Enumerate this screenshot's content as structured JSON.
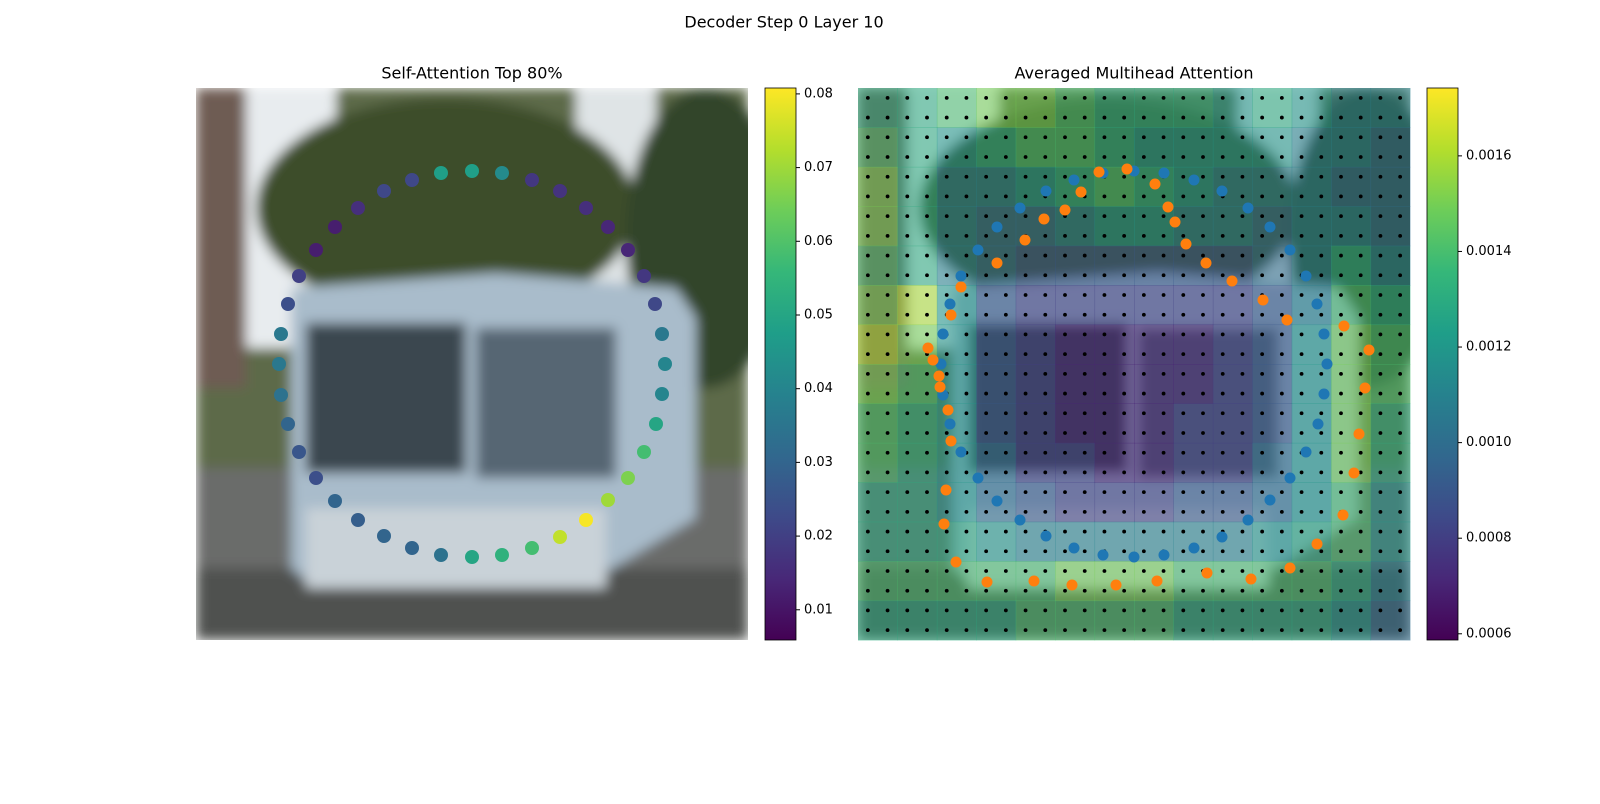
{
  "title": "Decoder Step 0 Layer 10",
  "chart_data": [
    {
      "type": "scatter",
      "title": "Self-Attention Top 80%",
      "xlim": [
        0,
        552
      ],
      "ylim": [
        552,
        0
      ],
      "x": [
        216,
        245,
        276,
        306,
        336,
        364,
        390,
        412,
        432,
        448,
        459,
        466,
        469,
        466,
        460,
        448,
        432,
        412,
        390,
        364,
        336,
        306,
        276,
        245,
        216,
        188,
        162,
        139,
        120,
        103,
        92,
        85,
        83,
        85,
        92,
        103,
        120,
        139,
        162,
        188
      ],
      "y": [
        92,
        85,
        83,
        85,
        92,
        103,
        120,
        139,
        162,
        188,
        216,
        246,
        276,
        306,
        336,
        364,
        390,
        412,
        432,
        449,
        460,
        467,
        469,
        467,
        460,
        448,
        432,
        413,
        390,
        364,
        336,
        307,
        276,
        246,
        216,
        188,
        162,
        139,
        120,
        103
      ],
      "values": [
        0.022,
        0.048,
        0.048,
        0.042,
        0.018,
        0.017,
        0.016,
        0.014,
        0.014,
        0.018,
        0.022,
        0.036,
        0.04,
        0.04,
        0.05,
        0.058,
        0.066,
        0.07,
        0.08,
        0.074,
        0.058,
        0.054,
        0.05,
        0.034,
        0.03,
        0.03,
        0.028,
        0.03,
        0.024,
        0.026,
        0.03,
        0.034,
        0.036,
        0.036,
        0.024,
        0.02,
        0.012,
        0.012,
        0.016,
        0.022
      ],
      "colormap": "viridis",
      "clim": [
        0.0059,
        0.0808
      ],
      "cticks": [
        0.01,
        0.02,
        0.03,
        0.04,
        0.05,
        0.06,
        0.07,
        0.08
      ]
    },
    {
      "type": "heatmap",
      "title": "Averaged Multihead Attention",
      "xlim": [
        0,
        552
      ],
      "ylim": [
        552,
        0
      ],
      "colormap": "viridis",
      "z": [
        [
          0.0013,
          0.0013,
          0.0014,
          0.0015,
          0.0015,
          0.0014,
          0.0013,
          0.0013,
          0.0013,
          0.0012,
          0.0013,
          0.0012,
          0.0011,
          0.0011
        ],
        [
          0.0014,
          0.0013,
          0.0012,
          0.0013,
          0.0014,
          0.0014,
          0.0013,
          0.0012,
          0.0012,
          0.0012,
          0.0012,
          0.0011,
          0.0011,
          0.001
        ],
        [
          0.0015,
          0.0013,
          0.0011,
          0.0011,
          0.0012,
          0.0013,
          0.0014,
          0.0013,
          0.0012,
          0.0011,
          0.0011,
          0.0011,
          0.001,
          0.001
        ],
        [
          0.0015,
          0.0013,
          0.0011,
          0.001,
          0.001,
          0.0011,
          0.0012,
          0.0012,
          0.0011,
          0.0011,
          0.001,
          0.0011,
          0.0011,
          0.001
        ],
        [
          0.0014,
          0.0013,
          0.0011,
          0.001,
          0.0009,
          0.0009,
          0.0009,
          0.0009,
          0.0009,
          0.0009,
          0.001,
          0.0011,
          0.0013,
          0.0011
        ],
        [
          0.0015,
          0.0016,
          0.0012,
          0.0009,
          0.0008,
          0.0008,
          0.0008,
          0.0008,
          0.0008,
          0.0008,
          0.0009,
          0.0011,
          0.0014,
          0.0013
        ],
        [
          0.0016,
          0.0015,
          0.0012,
          0.0009,
          0.0008,
          0.0007,
          0.0007,
          0.0007,
          0.0007,
          0.0008,
          0.0009,
          0.0012,
          0.0015,
          0.0014
        ],
        [
          0.0015,
          0.0014,
          0.0012,
          0.0009,
          0.0008,
          0.0007,
          0.0007,
          0.0007,
          0.0007,
          0.0008,
          0.0009,
          0.0012,
          0.0015,
          0.0014
        ],
        [
          0.0014,
          0.0013,
          0.0012,
          0.0009,
          0.0008,
          0.0007,
          0.0007,
          0.0007,
          0.0008,
          0.0008,
          0.0009,
          0.0012,
          0.0015,
          0.0013
        ],
        [
          0.0014,
          0.0013,
          0.0012,
          0.001,
          0.0008,
          0.0008,
          0.0007,
          0.0007,
          0.0008,
          0.0008,
          0.001,
          0.0012,
          0.0015,
          0.0013
        ],
        [
          0.0013,
          0.0013,
          0.0012,
          0.001,
          0.0009,
          0.0008,
          0.0008,
          0.0008,
          0.0009,
          0.0009,
          0.001,
          0.0012,
          0.0014,
          0.0012
        ],
        [
          0.0013,
          0.0013,
          0.0013,
          0.0012,
          0.0011,
          0.0011,
          0.0011,
          0.0011,
          0.0011,
          0.0011,
          0.0012,
          0.0013,
          0.0014,
          0.0012
        ],
        [
          0.0014,
          0.0014,
          0.0014,
          0.0014,
          0.0014,
          0.0015,
          0.0015,
          0.0015,
          0.0014,
          0.0014,
          0.0014,
          0.0014,
          0.0013,
          0.0011
        ],
        [
          0.0013,
          0.0013,
          0.0013,
          0.0013,
          0.0014,
          0.0014,
          0.0014,
          0.0014,
          0.0013,
          0.0013,
          0.0013,
          0.0013,
          0.0012,
          0.001
        ]
      ],
      "clim": [
        0.000587,
        0.001742
      ],
      "cticks": [
        0.0006,
        0.0008,
        {
          "value": 0.001,
          "label": "0.0010"
        },
        0.0012,
        0.0014,
        0.0016
      ],
      "series": [
        {
          "color": "#1f77b4",
          "x": [
            216,
            245,
            276,
            306,
            336,
            364,
            390,
            412,
            432,
            448,
            459,
            466,
            469,
            466,
            460,
            448,
            432,
            412,
            390,
            364,
            336,
            306,
            276,
            245,
            216,
            188,
            162,
            139,
            120,
            103,
            92,
            85,
            83,
            85,
            92,
            103,
            120,
            139,
            162,
            188
          ],
          "y": [
            92,
            85,
            83,
            85,
            92,
            103,
            120,
            139,
            162,
            188,
            216,
            246,
            276,
            306,
            336,
            364,
            390,
            412,
            432,
            449,
            460,
            467,
            469,
            467,
            460,
            448,
            432,
            413,
            390,
            364,
            336,
            307,
            276,
            246,
            216,
            188,
            162,
            139,
            120,
            103
          ]
        },
        {
          "color": "#ff7f0e",
          "x": [
            241,
            269,
            297,
            310,
            317,
            328,
            348,
            374,
            405,
            429,
            486,
            511,
            507,
            501,
            496,
            485,
            459,
            432,
            393,
            349,
            299,
            258,
            214,
            176,
            129,
            98,
            86,
            88,
            93,
            90,
            82,
            81,
            75,
            70,
            93,
            103,
            139,
            167,
            186,
            207,
            223
          ],
          "y": [
            84,
            81,
            96,
            119,
            134,
            156,
            175,
            193,
            212,
            232,
            238,
            262,
            300,
            346,
            385,
            427,
            456,
            480,
            491,
            485,
            493,
            497,
            497,
            493,
            494,
            474,
            436,
            402,
            353,
            322,
            299,
            288,
            272,
            260,
            227,
            199,
            175,
            152,
            131,
            122,
            104
          ]
        }
      ]
    }
  ]
}
